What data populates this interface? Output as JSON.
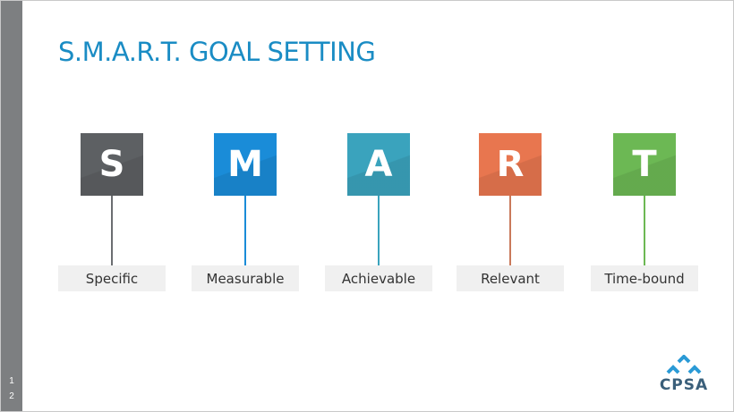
{
  "slide": {
    "title": "S.M.A.R.T. GOAL SETTING",
    "slide_number_digits": [
      "1",
      "2"
    ]
  },
  "items": [
    {
      "letter": "S",
      "label": "Specific",
      "color": "#5d6063",
      "stem_color": "#6b6e71"
    },
    {
      "letter": "M",
      "label": "Measurable",
      "color": "#1a8cd8",
      "stem_color": "#1a8cd8"
    },
    {
      "letter": "A",
      "label": "Achievable",
      "color": "#3aa3bd",
      "stem_color": "#3aa3bd"
    },
    {
      "letter": "R",
      "label": "Relevant",
      "color": "#e8764f",
      "stem_color": "#c97a5b"
    },
    {
      "letter": "T",
      "label": "Time-bound",
      "color": "#6cb854",
      "stem_color": "#6cb854"
    }
  ],
  "logo": {
    "text": "CPSA",
    "chevron_color": "#2a9ad6"
  },
  "colors": {
    "title": "#1a8cc4",
    "left_bar": "#7d7f81",
    "label_bg": "#f0f0f0"
  }
}
